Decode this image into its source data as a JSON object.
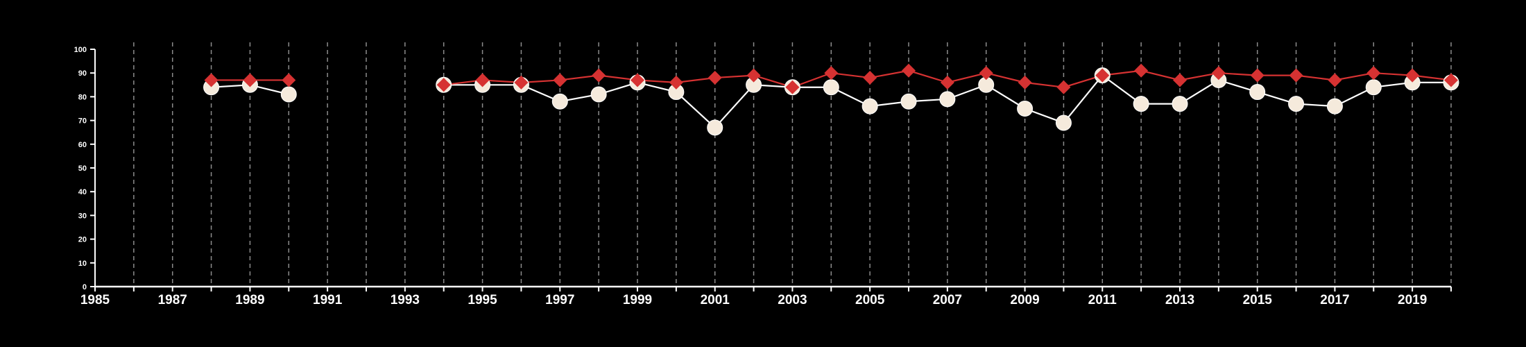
{
  "colors": {
    "background": "#000000",
    "axis": "#ffffff",
    "grid": "#8c8c8c",
    "series_white_fill": "#f5eadc",
    "series_white_line": "#ffffff",
    "series_red": "#d63232"
  },
  "chart_data": {
    "type": "line",
    "title": "",
    "xlabel": "",
    "ylabel": "",
    "xlim": [
      1985,
      2020
    ],
    "ylim": [
      0,
      100
    ],
    "grid": "vertical dashed",
    "x_ticks": [
      1985,
      1986,
      1987,
      1988,
      1989,
      1990,
      1991,
      1992,
      1993,
      1994,
      1995,
      1996,
      1997,
      1998,
      1999,
      2000,
      2001,
      2002,
      2003,
      2004,
      2005,
      2006,
      2007,
      2008,
      2009,
      2010,
      2011,
      2012,
      2013,
      2014,
      2015,
      2016,
      2017,
      2018,
      2019,
      2020
    ],
    "x_tick_labels": [
      "1985",
      "1987",
      "1989",
      "1991",
      "1993",
      "1995",
      "1997",
      "1999",
      "2001",
      "2003",
      "2005",
      "2007",
      "2009",
      "2011",
      "2013",
      "2015",
      "2017",
      "2019"
    ],
    "y_tick_labels": [
      "0",
      "10",
      "20",
      "30",
      "40",
      "50",
      "60",
      "70",
      "80",
      "90",
      "100"
    ],
    "x": [
      1988,
      1989,
      1990,
      1991,
      1992,
      1993,
      1994,
      1995,
      1996,
      1997,
      1998,
      1999,
      2000,
      2001,
      2002,
      2003,
      2004,
      2005,
      2006,
      2007,
      2008,
      2009,
      2010,
      2011,
      2012,
      2013,
      2014,
      2015,
      2016,
      2017,
      2018,
      2019,
      2020
    ],
    "series": [
      {
        "marker": "circle",
        "color": "#f5eadc",
        "values": [
          84,
          85,
          81,
          null,
          null,
          null,
          85,
          85,
          85,
          78,
          81,
          86,
          82,
          67,
          85,
          84,
          84,
          76,
          78,
          79,
          85,
          75,
          69,
          89,
          77,
          77,
          87,
          82,
          77,
          76,
          84,
          86,
          86
        ]
      },
      {
        "marker": "diamond",
        "color": "#d63232",
        "values": [
          87,
          87,
          87,
          null,
          null,
          null,
          85,
          87,
          86,
          87,
          89,
          87,
          86,
          88,
          89,
          84,
          90,
          88,
          91,
          86,
          90,
          86,
          84,
          89,
          91,
          87,
          90,
          89,
          89,
          87,
          90,
          89,
          87
        ]
      }
    ]
  }
}
